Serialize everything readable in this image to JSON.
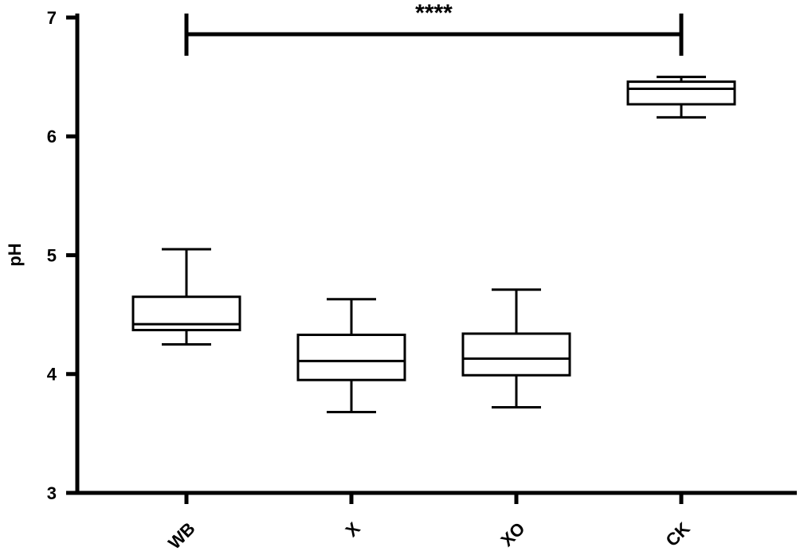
{
  "chart_data": {
    "type": "box",
    "y_label": "pH",
    "annotation": "****",
    "categories": [
      "WB",
      "X",
      "XO",
      "CK"
    ],
    "boxes": [
      {
        "min": 4.25,
        "q1": 4.37,
        "median": 4.42,
        "q3": 4.65,
        "max": 5.05
      },
      {
        "min": 3.68,
        "q1": 3.95,
        "median": 4.11,
        "q3": 4.33,
        "max": 4.63
      },
      {
        "min": 3.72,
        "q1": 3.99,
        "median": 4.13,
        "q3": 4.34,
        "max": 4.71
      },
      {
        "min": 6.16,
        "q1": 6.27,
        "median": 6.4,
        "q3": 6.46,
        "max": 6.5
      }
    ],
    "color": "#000000",
    "ylim": [
      3,
      7
    ],
    "yticks": [
      3,
      4,
      5,
      6,
      7
    ],
    "grid": false
  }
}
